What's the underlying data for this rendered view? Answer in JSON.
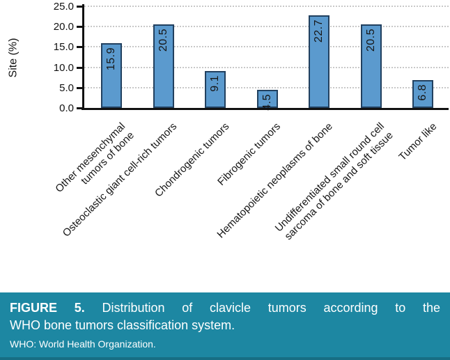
{
  "chart_data": {
    "type": "bar",
    "title": "",
    "xlabel": "",
    "ylabel": "Site (%)",
    "categories": [
      "Other mesenchymal\ntumors of bone",
      "Osteoclastic giant cell-rich tumors",
      "Chondrogenic tumors",
      "Fibrogenic tumors",
      "Hematopoietic neoplasms of bone",
      "Undifferentiated small round cell\nsarcoma of bone and soft tissue",
      "Tumor like"
    ],
    "values": [
      15.9,
      20.5,
      9.1,
      4.5,
      22.7,
      20.5,
      6.8
    ],
    "value_labels": [
      "15.9",
      "20.5",
      "9.1",
      "4.5",
      "22.7",
      "20.5",
      "6.8"
    ],
    "ylim": [
      0,
      25
    ],
    "ytick_labels": [
      "0.0",
      "5.0",
      "10.0",
      "15.0",
      "20.0",
      "25.0"
    ],
    "ytick_values": [
      0,
      5,
      10,
      15,
      20,
      25
    ],
    "grid": "horizontal-dotted",
    "legend_position": "none",
    "bar_fill_color": "#5b9ace",
    "bar_border_color": "#21405f",
    "value_label_rotation": "vertical-bottom-to-top",
    "category_label_rotation": "45deg"
  },
  "caption": {
    "figure_label": "FIGURE 5.",
    "line1_rest": "Distribution of clavicle tumors according to the",
    "line2": "WHO bone tumors classification system.",
    "footnote": "WHO: World Health Organization.",
    "background_color": "#1d87a2",
    "text_color": "#ffffff"
  }
}
